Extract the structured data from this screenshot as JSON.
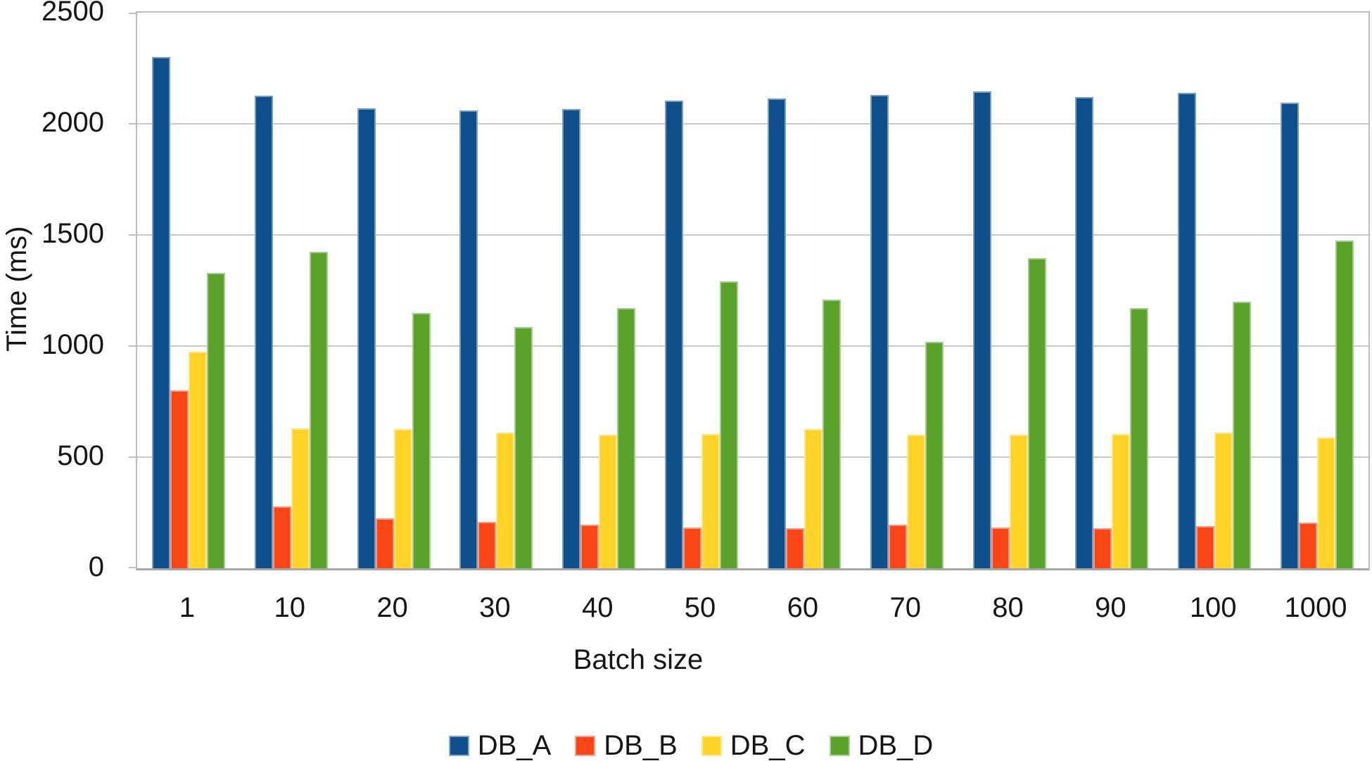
{
  "chart_data": {
    "type": "bar",
    "title": "",
    "xlabel": "Batch size",
    "ylabel": "Time (ms)",
    "categories": [
      "1",
      "10",
      "20",
      "30",
      "40",
      "50",
      "60",
      "70",
      "80",
      "90",
      "100",
      "1000"
    ],
    "series": [
      {
        "name": "DB_A",
        "color": "#0d4e8b",
        "values": [
          2300,
          2125,
          2070,
          2060,
          2065,
          2105,
          2115,
          2130,
          2145,
          2120,
          2140,
          2095
        ]
      },
      {
        "name": "DB_B",
        "color": "#fa4616",
        "values": [
          800,
          280,
          225,
          210,
          195,
          185,
          180,
          195,
          185,
          180,
          190,
          205
        ]
      },
      {
        "name": "DB_C",
        "color": "#ffd227",
        "values": [
          975,
          630,
          625,
          610,
          600,
          605,
          625,
          600,
          600,
          605,
          610,
          590
        ]
      },
      {
        "name": "DB_D",
        "color": "#5aa22b",
        "values": [
          1330,
          1425,
          1150,
          1085,
          1170,
          1290,
          1210,
          1020,
          1395,
          1170,
          1200,
          1475
        ]
      }
    ],
    "ylim": [
      0,
      2500
    ],
    "yticks": [
      "0",
      "500",
      "1000",
      "1500",
      "2000",
      "2500"
    ],
    "grid": true,
    "legend_position": "bottom"
  }
}
